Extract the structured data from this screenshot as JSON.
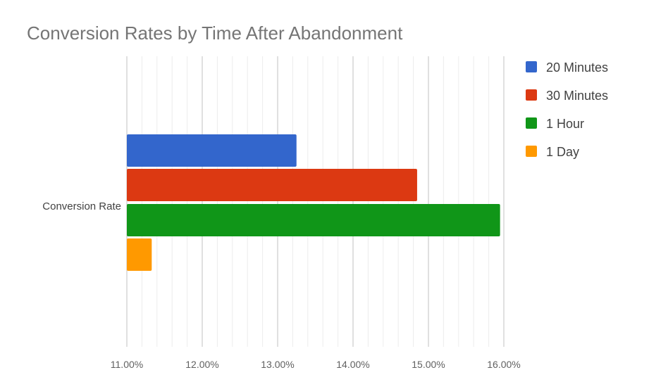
{
  "chart_data": {
    "type": "bar",
    "orientation": "horizontal",
    "title": "Conversion Rates by Time After Abandonment",
    "categories": [
      "Conversion Rate"
    ],
    "series": [
      {
        "name": "20 Minutes",
        "values": [
          13.25
        ],
        "color": "#3366cc"
      },
      {
        "name": "30 Minutes",
        "values": [
          14.85
        ],
        "color": "#dc3912"
      },
      {
        "name": "1 Hour",
        "values": [
          15.95
        ],
        "color": "#109618"
      },
      {
        "name": "1 Day",
        "values": [
          11.33
        ],
        "color": "#ff9900"
      }
    ],
    "xlim": [
      11,
      16
    ],
    "x_ticks": [
      "11.00%",
      "12.00%",
      "13.00%",
      "14.00%",
      "15.00%",
      "16.00%"
    ],
    "x_minor_gridlines": true,
    "grid": true,
    "legend_position": "right",
    "xlabel": "",
    "ylabel": ""
  }
}
